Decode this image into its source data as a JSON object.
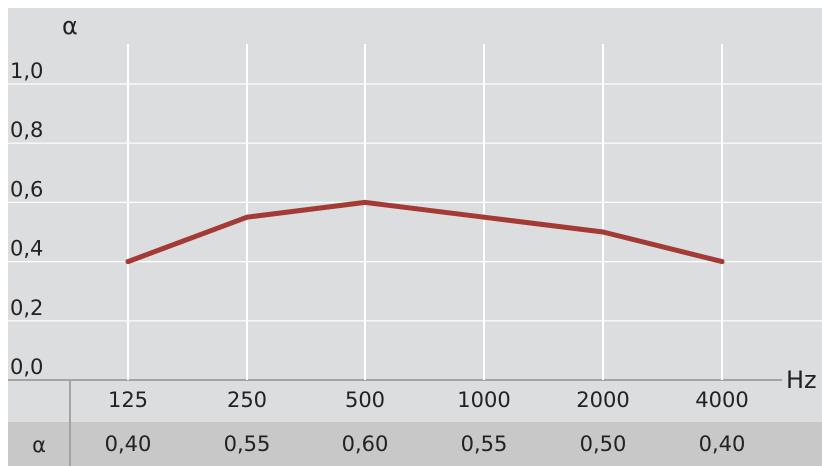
{
  "chart_data": {
    "type": "line",
    "title": "",
    "ylabel": "α",
    "xlabel": "Hz",
    "categories": [
      "125",
      "250",
      "500",
      "1000",
      "2000",
      "4000"
    ],
    "y_ticks": [
      "0,0",
      "0,2",
      "0,4",
      "0,6",
      "0,8",
      "1,0"
    ],
    "ylim": [
      0,
      1.0
    ],
    "grid": true,
    "series": [
      {
        "values": [
          0.4,
          0.55,
          0.6,
          0.55,
          0.5,
          0.4
        ]
      }
    ],
    "table": {
      "row_label": "α",
      "values": [
        "0,40",
        "0,55",
        "0,60",
        "0,55",
        "0,50",
        "0,40"
      ]
    }
  },
  "colors": {
    "plot_background": "#dcddde",
    "grid": "#ffffff",
    "axis": "#a3a3a3",
    "line": "#a33a36",
    "table_background": "#c8c8c8",
    "border": "#bdbdbd"
  }
}
